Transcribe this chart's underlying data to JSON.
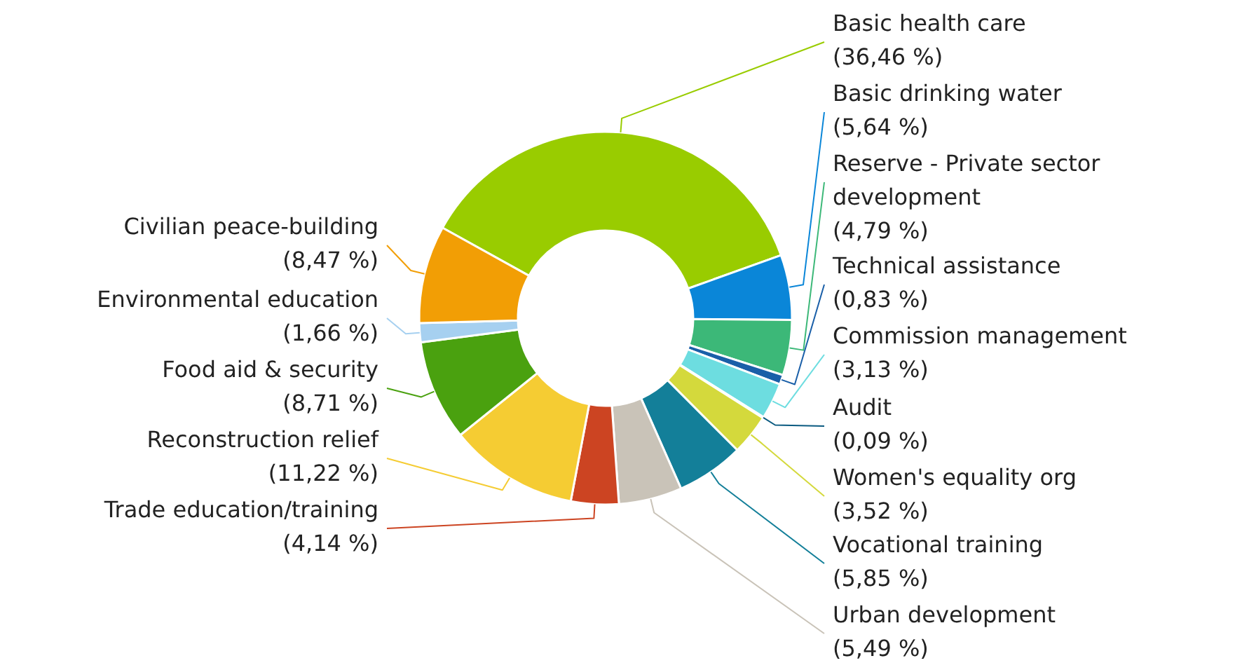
{
  "chart_data": {
    "type": "donut",
    "categories": [
      "Basic health care",
      "Basic drinking water",
      "Reserve - Private sector development",
      "Technical assistance",
      "Commission management",
      "Audit",
      "Women's equality org",
      "Vocational training",
      "Urban development",
      "Trade education/training",
      "Reconstruction relief",
      "Food aid & security",
      "Environmental education",
      "Civilian peace-building"
    ],
    "values": [
      36.46,
      5.64,
      4.79,
      0.83,
      3.13,
      0.09,
      3.52,
      5.85,
      5.49,
      4.14,
      11.22,
      8.71,
      1.66,
      8.47
    ],
    "value_labels": [
      "(36,46 %)",
      "(5,64 %)",
      "(4,79 %)",
      "(0,83 %)",
      "(3,13 %)",
      "(0,09 %)",
      "(3,52 %)",
      "(5,85 %)",
      "(5,49 %)",
      "(4,14 %)",
      "(11,22 %)",
      "(8,71 %)",
      "(1,66 %)",
      "(8,47 %)"
    ],
    "colors": [
      "#99cc00",
      "#0a86d8",
      "#3cb878",
      "#1a5fa8",
      "#6ddde0",
      "#0a5a80",
      "#d4d93c",
      "#137f99",
      "#c9c3b8",
      "#cc4422",
      "#f5cc33",
      "#4aa10f",
      "#a6d0f0",
      "#f29e05"
    ]
  }
}
